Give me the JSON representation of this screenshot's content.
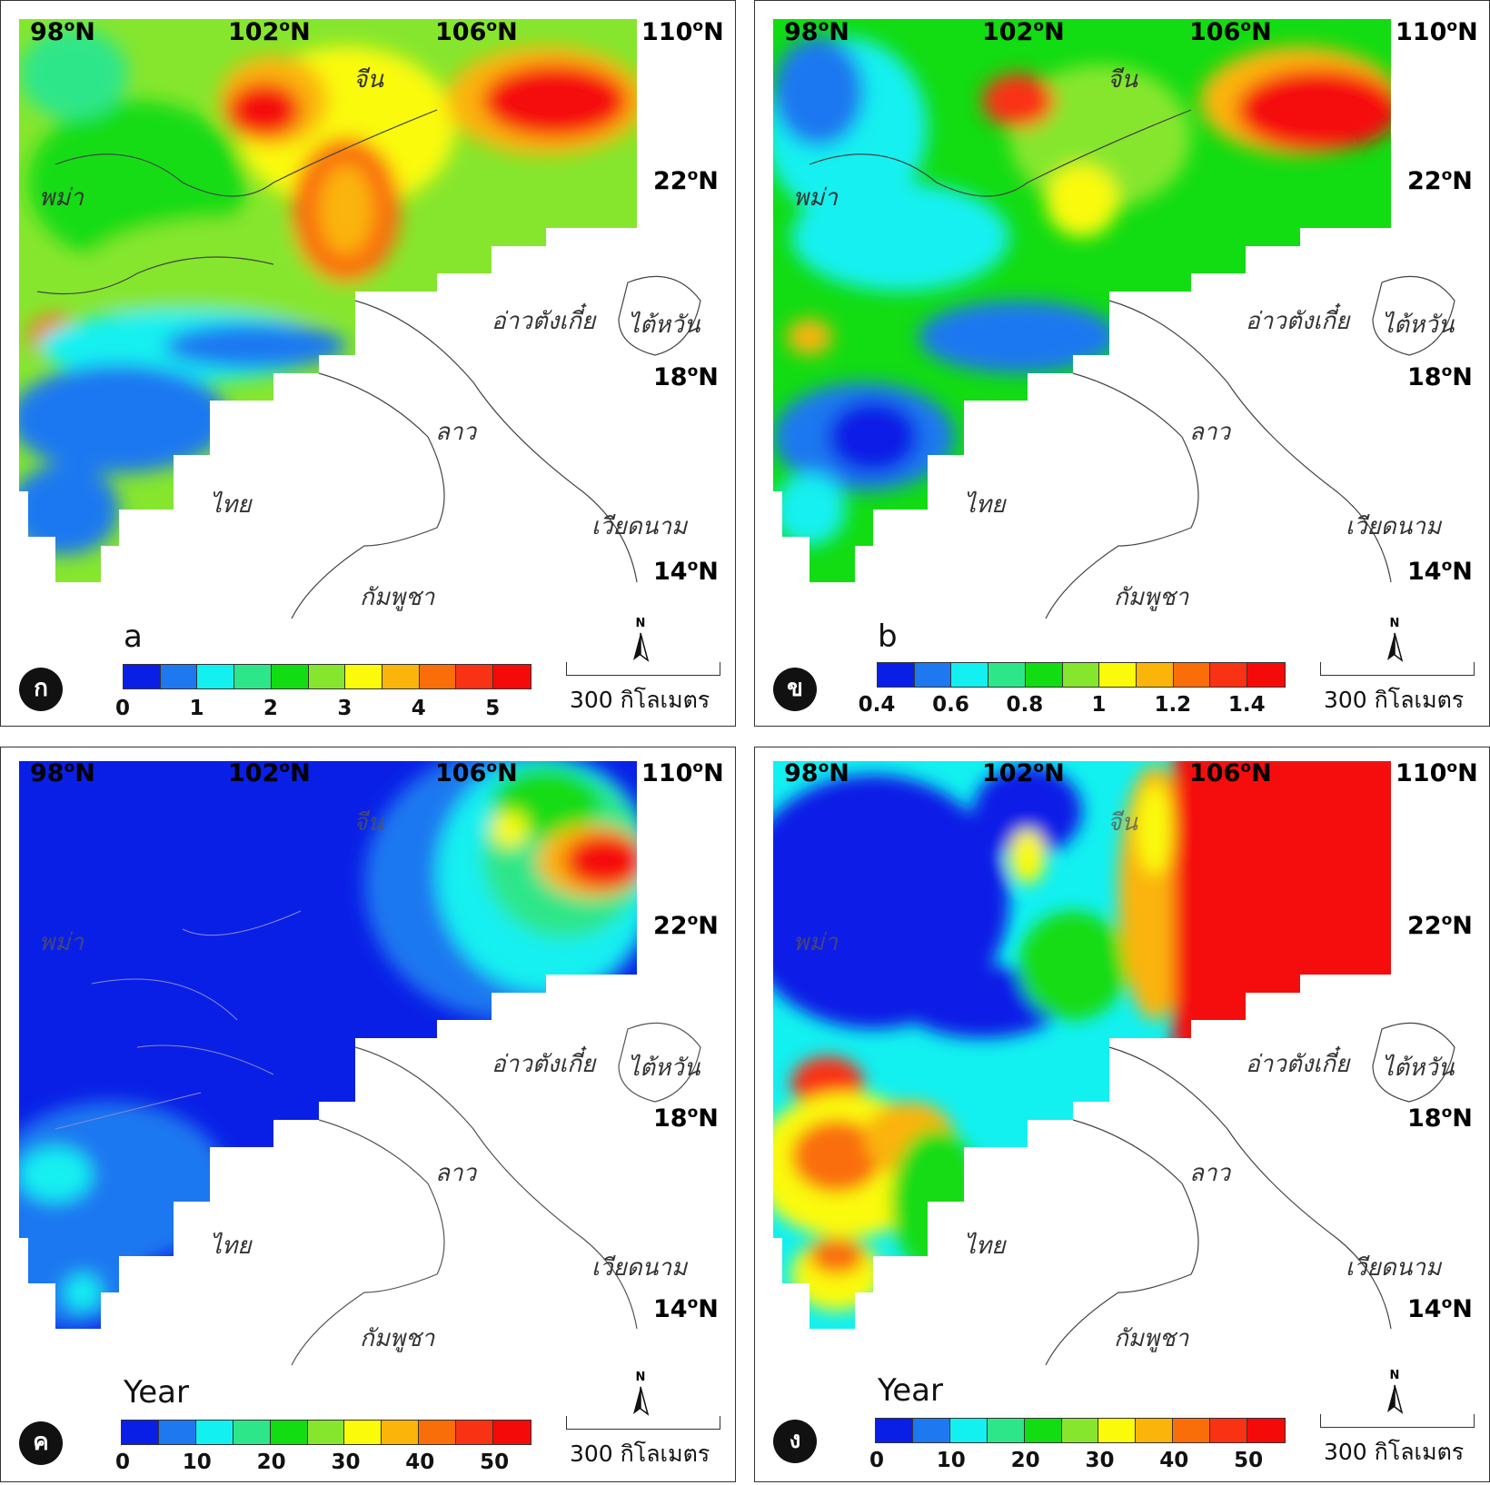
{
  "panels": [
    {
      "id": "k",
      "badge": "ก",
      "corner_label": "a",
      "colorbar_ticks": [
        "0",
        "1",
        "2",
        "3",
        "4",
        "5"
      ],
      "colorbar_colors": [
        "#0a1fe6",
        "#1e78f0",
        "#12f0f0",
        "#2ee68a",
        "#12dc12",
        "#86e62e",
        "#fafa0a",
        "#fab40a",
        "#fa6e0a",
        "#fa3214",
        "#f50a0a"
      ],
      "scale": "300 กิโลเมตร",
      "north": "N"
    },
    {
      "id": "kh",
      "badge": "ข",
      "corner_label": "b",
      "colorbar_ticks": [
        "0.4",
        "0.6",
        "0.8",
        "1",
        "1.2",
        "1.4"
      ],
      "colorbar_colors": [
        "#0a1fe6",
        "#1e78f0",
        "#12f0f0",
        "#2ee68a",
        "#12dc12",
        "#86e62e",
        "#fafa0a",
        "#fab40a",
        "#fa6e0a",
        "#fa3214",
        "#f50a0a"
      ],
      "scale": "300 กิโลเมตร",
      "north": "N"
    },
    {
      "id": "kho",
      "badge": "ค",
      "corner_label": "Year",
      "colorbar_ticks": [
        "0",
        "10",
        "20",
        "30",
        "40",
        "50"
      ],
      "colorbar_colors": [
        "#0a1fe6",
        "#1e78f0",
        "#12f0f0",
        "#2ee68a",
        "#12dc12",
        "#86e62e",
        "#fafa0a",
        "#fab40a",
        "#fa6e0a",
        "#fa3214",
        "#f50a0a"
      ],
      "scale": "300 กิโลเมตร",
      "north": "N"
    },
    {
      "id": "ng",
      "badge": "ง",
      "corner_label": "Year",
      "colorbar_ticks": [
        "0",
        "10",
        "20",
        "30",
        "40",
        "50"
      ],
      "colorbar_colors": [
        "#0a1fe6",
        "#1e78f0",
        "#12f0f0",
        "#2ee68a",
        "#12dc12",
        "#86e62e",
        "#fafa0a",
        "#fab40a",
        "#fa6e0a",
        "#fa3214",
        "#f50a0a"
      ],
      "scale": "300 กิโลเมตร",
      "north": "N"
    }
  ],
  "lon_labels": [
    "98",
    "102",
    "106",
    "110"
  ],
  "lat_labels": [
    "22",
    "18",
    "14"
  ],
  "coord_suffix": "N",
  "deg_symbol": "o",
  "countries": {
    "china": "จีน",
    "myanmar": "พม่า",
    "gulf": "อ่าวตังเกี๋ย",
    "taiwan": "ไต้หวัน",
    "laos": "ลาว",
    "thailand": "ไทย",
    "vietnam": "เวียดนาม",
    "cambodia": "กัมพูชา"
  }
}
